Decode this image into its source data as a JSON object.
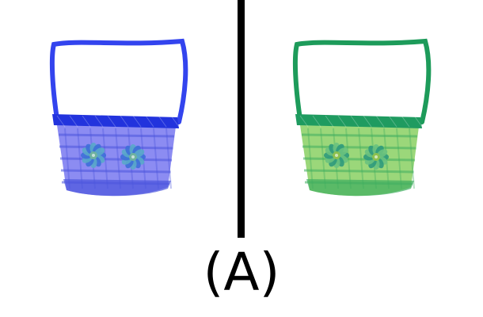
{
  "figure": {
    "caption": "(A)",
    "divider_color": "#000000",
    "background_color": "#ffffff"
  },
  "panels": [
    {
      "name": "blue-basket",
      "palette": {
        "handle": "#3344ee",
        "rim": "#2233dd",
        "body": "#8c8cf2",
        "weave_dark": "#4b55dd",
        "flower_a": "#59a9c9",
        "flower_b": "#3d6fd8",
        "flower_center": "#6fb29f"
      }
    },
    {
      "name": "green-basket",
      "palette": {
        "handle": "#1d9b5a",
        "rim": "#1f9b60",
        "body": "#9bd77a",
        "weave_dark": "#3fae5f",
        "flower_a": "#6ac27e",
        "flower_b": "#2f9a7c",
        "flower_center": "#8cc04f"
      }
    }
  ]
}
